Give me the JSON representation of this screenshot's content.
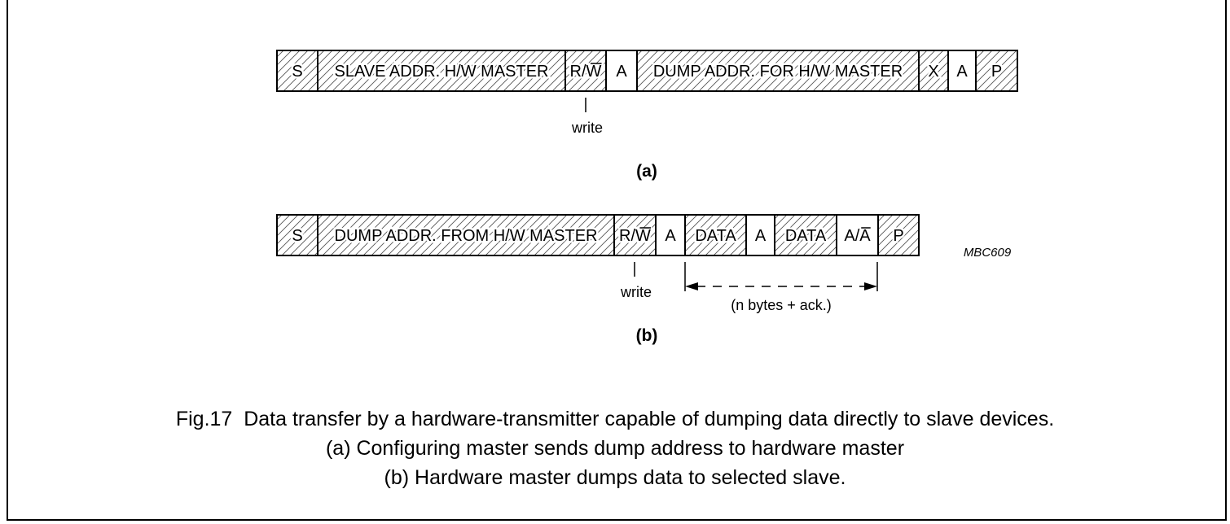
{
  "frame_a": {
    "cells": [
      {
        "text": "S",
        "hatched": true,
        "overline": false
      },
      {
        "text": "SLAVE ADDR. H/W MASTER",
        "hatched": true,
        "overline": false
      },
      {
        "text": "R/W",
        "hatched": true,
        "overline": "W"
      },
      {
        "text": "A",
        "hatched": false,
        "overline": false
      },
      {
        "text": "DUMP ADDR. FOR H/W MASTER",
        "hatched": true,
        "overline": false
      },
      {
        "text": "X",
        "hatched": true,
        "overline": false
      },
      {
        "text": "A",
        "hatched": false,
        "overline": false
      },
      {
        "text": "P",
        "hatched": true,
        "overline": false
      }
    ],
    "write_label": "write",
    "label": "(a)"
  },
  "frame_b": {
    "cells": [
      {
        "text": "S",
        "hatched": true,
        "overline": false
      },
      {
        "text": "DUMP ADDR. FROM H/W MASTER",
        "hatched": true,
        "overline": false
      },
      {
        "text": "R/W",
        "hatched": true,
        "overline": "W"
      },
      {
        "text": "A",
        "hatched": false,
        "overline": false
      },
      {
        "text": "DATA",
        "hatched": true,
        "overline": false
      },
      {
        "text": "A",
        "hatched": false,
        "overline": false
      },
      {
        "text": "DATA",
        "hatched": true,
        "overline": false
      },
      {
        "text": "A/A",
        "hatched": false,
        "overline": "A2"
      },
      {
        "text": "P",
        "hatched": true,
        "overline": false
      }
    ],
    "write_label": "write",
    "range_label": "(n bytes + ack.)",
    "label": "(b)"
  },
  "code": "MBC609",
  "caption": {
    "line1": "Fig.17  Data transfer by a hardware-transmitter capable of dumping data directly to slave devices.",
    "line2": "(a) Configuring master sends dump address to hardware master",
    "line3": "(b) Hardware master dumps data to selected slave."
  }
}
